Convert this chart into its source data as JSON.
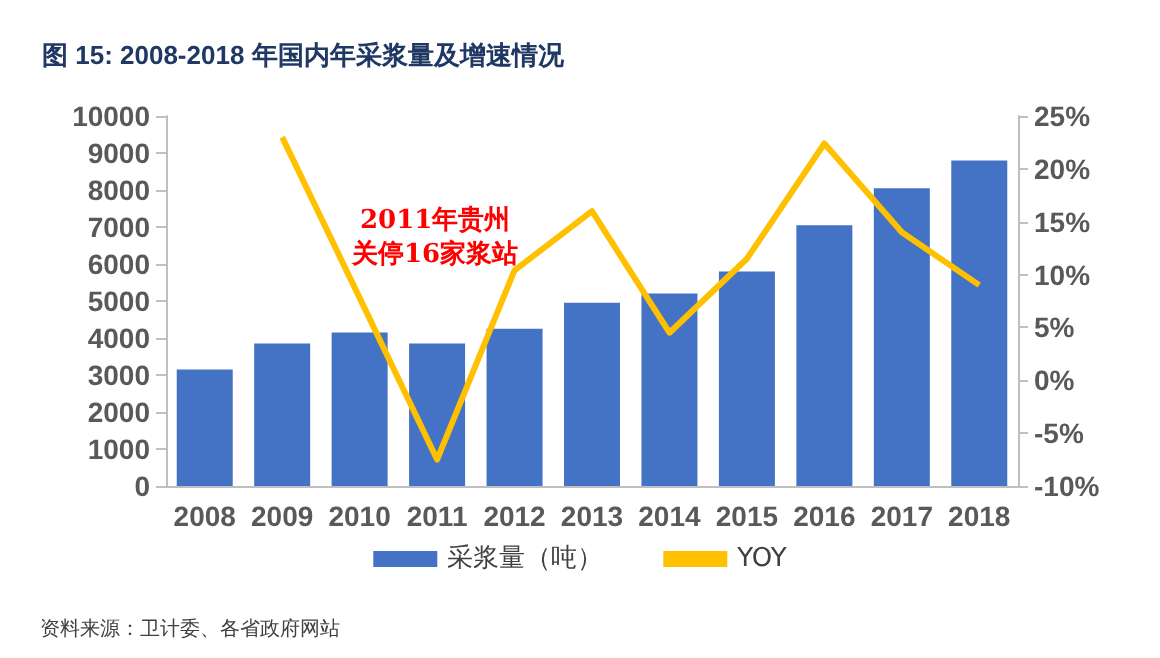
{
  "chart_data": {
    "type": "bar",
    "title": "图 15: 2008-2018 年国内年采浆量及增速情况",
    "categories": [
      "2008",
      "2009",
      "2010",
      "2011",
      "2012",
      "2013",
      "2014",
      "2015",
      "2016",
      "2017",
      "2018"
    ],
    "series": [
      {
        "name": "采浆量（吨）",
        "color": "#4472c4",
        "values": [
          3150,
          3850,
          4150,
          3850,
          4250,
          4950,
          5200,
          5800,
          7050,
          8050,
          8800
        ]
      },
      {
        "name": "YOY",
        "type": "line",
        "axis": "y2",
        "color": "#ffc000",
        "values": [
          null,
          23,
          7.8,
          -7.5,
          10.4,
          16,
          4.5,
          11.5,
          22.4,
          14,
          9
        ]
      }
    ],
    "ylim": [
      0,
      10000
    ],
    "yticks": [
      0,
      1000,
      2000,
      3000,
      4000,
      5000,
      6000,
      7000,
      8000,
      9000,
      10000
    ],
    "y2lim": [
      -10,
      25
    ],
    "y2ticks": [
      {
        "value": -10,
        "label": "-10%"
      },
      {
        "value": -5,
        "label": "-5%"
      },
      {
        "value": 0,
        "label": "0%"
      },
      {
        "value": 5,
        "label": "5%"
      },
      {
        "value": 10,
        "label": "10%"
      },
      {
        "value": 15,
        "label": "15%"
      },
      {
        "value": 20,
        "label": "20%"
      },
      {
        "value": 25,
        "label": "25%"
      }
    ],
    "grid": false,
    "legend": "bottom",
    "marker": "none",
    "annotations": [
      "2011年贵州",
      "关停16家浆站",
      "资料来源：卫计委、各省政府网站"
    ]
  }
}
